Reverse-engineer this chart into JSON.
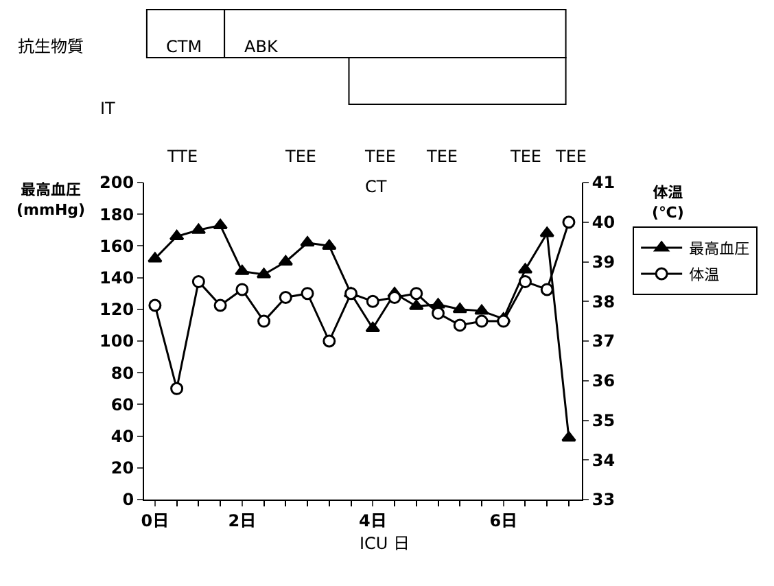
{
  "chart_data": {
    "type": "line",
    "categories": [
      "0日",
      null,
      null,
      null,
      "2日",
      null,
      null,
      null,
      null,
      null,
      "4日",
      null,
      null,
      null,
      null,
      null,
      "6日",
      null,
      null,
      null
    ],
    "xlabel": "ICU 日",
    "ylabel": "最高血圧\n(mmHg)",
    "y2label": "体温\n(℃)",
    "ylim": [
      0,
      200
    ],
    "yticks": [
      0,
      20,
      40,
      60,
      80,
      100,
      120,
      140,
      160,
      180,
      200
    ],
    "y2lim": [
      33,
      41
    ],
    "y2ticks": [
      33,
      34,
      35,
      36,
      37,
      38,
      39,
      40,
      41
    ],
    "series": [
      {
        "name": "最高血圧",
        "color": "#000000",
        "marker": "triangle",
        "values": [
          152,
          166,
          170,
          173,
          144,
          142,
          150,
          162,
          160,
          130,
          108,
          130,
          122,
          123,
          120,
          119,
          114,
          145,
          168,
          39
        ]
      },
      {
        "name": "体温",
        "color": "#000000",
        "marker": "circle",
        "axis": "y2",
        "values": [
          37.9,
          35.8,
          38.5,
          37.9,
          38.3,
          37.5,
          38.1,
          38.2,
          37.0,
          38.2,
          38.0,
          38.1,
          38.2,
          37.7,
          37.4,
          37.5,
          37.5,
          38.5,
          38.3,
          40.0
        ]
      }
    ],
    "legend": "top right",
    "line_style": "solid",
    "annotations": [
      "抗生物質",
      "IT",
      "CTM",
      "ABK",
      "TTE",
      "TEE",
      "TEE",
      "TEE",
      "TEE",
      "TEE",
      "CT"
    ]
  }
}
